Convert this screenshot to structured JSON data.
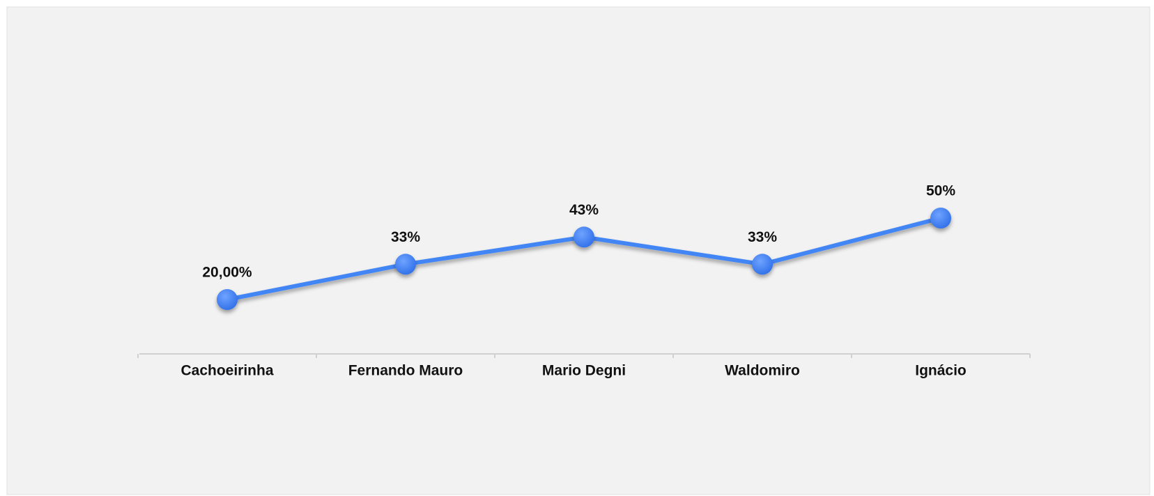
{
  "chart_data": {
    "type": "line",
    "categories": [
      "Cachoeirinha",
      "Fernando Mauro",
      "Mario Degni",
      "Waldomiro",
      "Ignácio"
    ],
    "values": [
      20,
      33,
      43,
      33,
      50
    ],
    "value_labels": [
      "20,00%",
      "33%",
      "43%",
      "33%",
      "50%"
    ],
    "color": "#4285f4",
    "ylim": [
      0,
      100
    ]
  }
}
